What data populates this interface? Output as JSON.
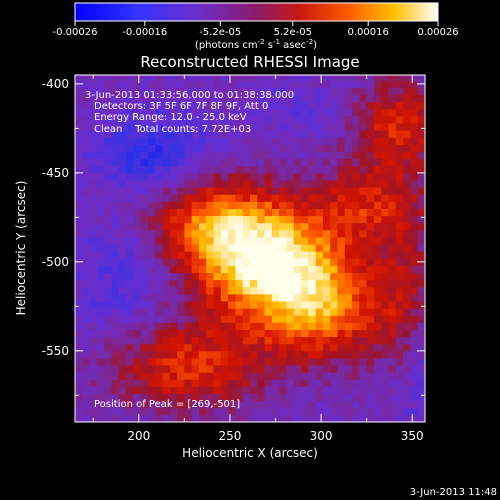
{
  "chart_data": {
    "type": "heatmap",
    "title": "Reconstructed RHESSI Image",
    "xlabel": "Heliocentric X (arcsec)",
    "ylabel": "Heliocentric Y (arcsec)",
    "xlim": [
      165,
      357
    ],
    "ylim": [
      -590,
      -395
    ],
    "xticks": [
      200,
      250,
      300,
      350
    ],
    "yticks": [
      -400,
      -450,
      -500,
      -550
    ],
    "colorbar": {
      "ticks": [
        -0.00026,
        -0.00016,
        -5.2e-05,
        5.2e-05,
        0.00016,
        0.00026
      ],
      "tick_labels": [
        "-0.00026",
        "-0.00016",
        "-5.2e-05",
        "5.2e-05",
        "0.00016",
        "0.00026"
      ],
      "range": [
        -0.00026,
        0.00026
      ],
      "units_main": "(photons cm",
      "units_exp1": "-2",
      "units_mid": " s",
      "units_exp2": "-1",
      "units_end": " asec",
      "units_exp3": "-2",
      "units_close": ")"
    },
    "annotations": {
      "time_range": "3-Jun-2013 01:33:56.000 to 01:38:38.000",
      "detectors": "Detectors: 3F 5F 6F 7F 8F 9F, Att 0",
      "energy": "Energy Range: 12.0 - 25.0 keV",
      "method": "Clean    Total counts: 7.72E+03",
      "peak": "Position of Peak = [269,-501]"
    },
    "peak": [
      269,
      -501
    ],
    "grid": false,
    "colormap": "rainbow-hot",
    "footer": "3-Jun-2013 11:48"
  }
}
